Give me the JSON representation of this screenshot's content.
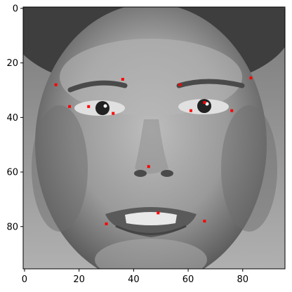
{
  "chart_data": {
    "type": "scatter",
    "title": "",
    "xlabel": "",
    "ylabel": "",
    "background_image": "grayscale face photo",
    "xlim": [
      -0.5,
      95.5
    ],
    "ylim": [
      95.5,
      -0.5
    ],
    "y_inverted": true,
    "x_ticks": [
      0,
      20,
      40,
      60,
      80
    ],
    "y_ticks": [
      0,
      20,
      40,
      60,
      80
    ],
    "grid": false,
    "legend": "none",
    "marker_color": "#ff0000",
    "points": [
      {
        "x": 11.5,
        "y": 28
      },
      {
        "x": 16.5,
        "y": 36
      },
      {
        "x": 23.5,
        "y": 36
      },
      {
        "x": 32.5,
        "y": 38.5
      },
      {
        "x": 36,
        "y": 26
      },
      {
        "x": 45.5,
        "y": 58
      },
      {
        "x": 57,
        "y": 28
      },
      {
        "x": 61,
        "y": 37.5
      },
      {
        "x": 66,
        "y": 34.5
      },
      {
        "x": 76,
        "y": 37.5
      },
      {
        "x": 83,
        "y": 25.5
      },
      {
        "x": 49,
        "y": 75
      },
      {
        "x": 30,
        "y": 79
      },
      {
        "x": 66,
        "y": 78
      }
    ]
  }
}
